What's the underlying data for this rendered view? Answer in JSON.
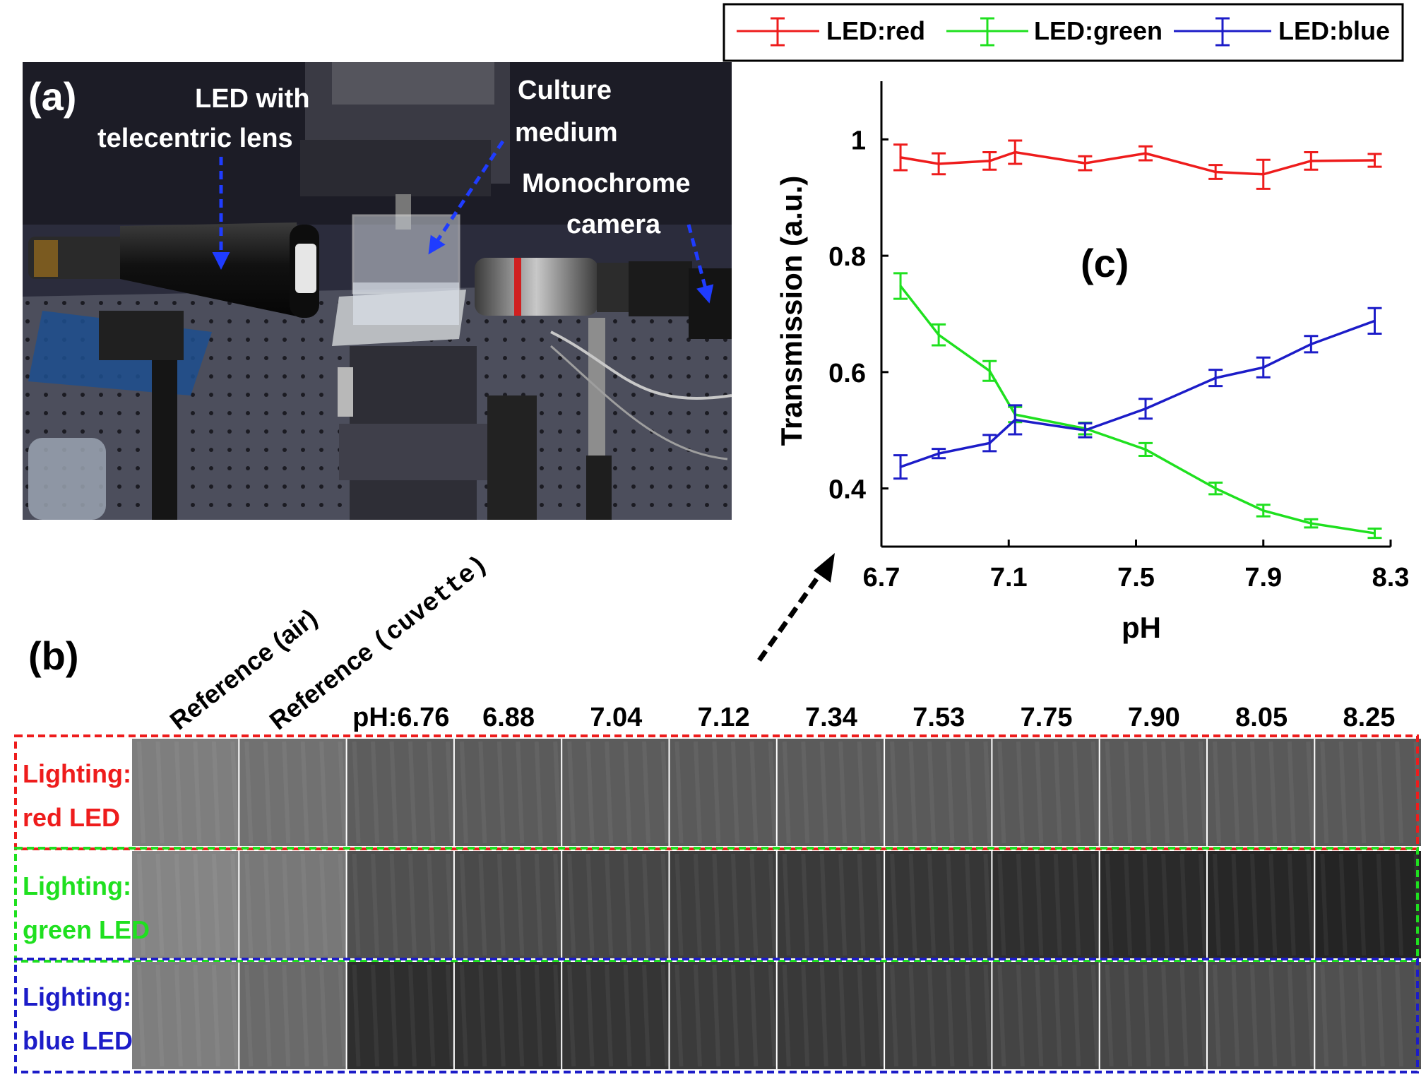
{
  "panel_a": {
    "label": "(a)",
    "annotations": {
      "led_line1": "LED with",
      "led_line2": "telecentric lens",
      "culture_line1": "Culture",
      "culture_line2": "medium",
      "camera_line1": "Monochrome",
      "camera_line2": "camera"
    }
  },
  "panel_b": {
    "label": "(b)",
    "reference_air": "Reference (air)",
    "reference_cuvette_prefix": "Reference ",
    "reference_cuvette_mono": "(cuvette)",
    "ph_headers": [
      "pH:6.76",
      "6.88",
      "7.04",
      "7.12",
      "7.34",
      "7.53",
      "7.75",
      "7.90",
      "8.05",
      "8.25"
    ],
    "rows": [
      {
        "label_line1": "Lighting:",
        "label_line2": "red LED",
        "color": "#ee1c1c",
        "tiles": [
          "#7e7e7e",
          "#717171",
          "#5d5d5d",
          "#5b5b5b",
          "#5c5c5c",
          "#5a5a5a",
          "#5b5b5b",
          "#5a5a5a",
          "#595959",
          "#5a5a5a",
          "#595959",
          "#595959"
        ]
      },
      {
        "label_line1": "Lighting:",
        "label_line2": "green LED",
        "color": "#1fe01f",
        "tiles": [
          "#858585",
          "#787878",
          "#505050",
          "#4a4a4a",
          "#464646",
          "#3e3e3e",
          "#3a3a3a",
          "#363636",
          "#2f2f2f",
          "#2a2a2a",
          "#272727",
          "#242424"
        ]
      },
      {
        "label_line1": "Lighting:",
        "label_line2": "blue LED",
        "color": "#1c1cc8",
        "tiles": [
          "#7e7e7e",
          "#6a6a6a",
          "#2e2e2e",
          "#313131",
          "#353535",
          "#3b3b3b",
          "#393939",
          "#3f3f3f",
          "#444444",
          "#474747",
          "#4b4b4b",
          "#505050"
        ]
      }
    ]
  },
  "panel_c": {
    "label": "(c)",
    "colors": {
      "red": "#ee1c1c",
      "green": "#1fe01f",
      "blue": "#1c1cc8"
    }
  },
  "chart_data": {
    "type": "line",
    "xlabel": "pH",
    "ylabel": "Transmission (a.u.)",
    "xlim": [
      6.7,
      8.3
    ],
    "ylim": [
      0.3,
      1.1
    ],
    "xticks": [
      "6.7",
      "7.1",
      "7.5",
      "7.9",
      "8.3"
    ],
    "yticks": [
      "0.4",
      "0.6",
      "0.8",
      "1"
    ],
    "x": [
      6.76,
      6.88,
      7.04,
      7.12,
      7.34,
      7.53,
      7.75,
      7.9,
      8.05,
      8.25
    ],
    "series": [
      {
        "name": "LED:red",
        "color": "#ee1c1c",
        "values": [
          0.969,
          0.958,
          0.963,
          0.978,
          0.959,
          0.976,
          0.944,
          0.94,
          0.963,
          0.964
        ],
        "errors": [
          0.022,
          0.018,
          0.015,
          0.02,
          0.012,
          0.012,
          0.012,
          0.025,
          0.015,
          0.011
        ]
      },
      {
        "name": "LED:green",
        "color": "#1fe01f",
        "values": [
          0.748,
          0.664,
          0.602,
          0.527,
          0.503,
          0.467,
          0.4,
          0.362,
          0.34,
          0.323
        ],
        "errors": [
          0.022,
          0.018,
          0.017,
          0.013,
          0.01,
          0.011,
          0.01,
          0.01,
          0.007,
          0.008
        ]
      },
      {
        "name": "LED:blue",
        "color": "#1c1cc8",
        "values": [
          0.437,
          0.46,
          0.478,
          0.518,
          0.5,
          0.537,
          0.59,
          0.608,
          0.648,
          0.688
        ],
        "errors": [
          0.02,
          0.008,
          0.014,
          0.025,
          0.012,
          0.017,
          0.014,
          0.017,
          0.014,
          0.022
        ]
      }
    ],
    "grid": false,
    "legend": "top"
  }
}
